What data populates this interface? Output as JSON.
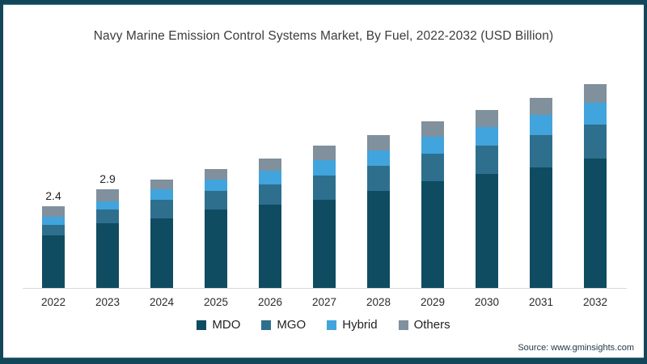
{
  "title": "Navy Marine Emission Control Systems Market, By Fuel, 2022-2032 (USD Billion)",
  "source": "Source: www.gminsights.com",
  "colors": {
    "frame_border": "#14465a",
    "axis_line": "#d9d9d9",
    "mdo": "#0f4c61",
    "mgo": "#2e6f8e",
    "hybrid": "#41a4dc",
    "others": "#80909c"
  },
  "chart_data": {
    "type": "bar",
    "stacked": true,
    "title": "Navy Marine Emission Control Systems Market, By Fuel, 2022-2032 (USD Billion)",
    "unit": "USD Billion",
    "categories": [
      "2022",
      "2023",
      "2024",
      "2025",
      "2026",
      "2027",
      "2028",
      "2029",
      "2030",
      "2031",
      "2032"
    ],
    "series": [
      {
        "name": "MDO",
        "color": "#0f4c61",
        "values": [
          1.55,
          1.9,
          2.05,
          2.3,
          2.45,
          2.6,
          2.85,
          3.15,
          3.35,
          3.55,
          3.8
        ]
      },
      {
        "name": "MGO",
        "color": "#2e6f8e",
        "values": [
          0.3,
          0.4,
          0.55,
          0.55,
          0.6,
          0.7,
          0.75,
          0.8,
          0.85,
          0.95,
          1.0
        ]
      },
      {
        "name": "Hybrid",
        "color": "#41a4dc",
        "values": [
          0.25,
          0.25,
          0.3,
          0.35,
          0.4,
          0.45,
          0.45,
          0.5,
          0.55,
          0.6,
          0.65
        ]
      },
      {
        "name": "Others",
        "color": "#80909c",
        "values": [
          0.3,
          0.35,
          0.3,
          0.3,
          0.35,
          0.45,
          0.45,
          0.45,
          0.5,
          0.5,
          0.55
        ]
      }
    ],
    "totals": [
      2.4,
      2.9,
      3.2,
      3.5,
      3.8,
      4.2,
      4.5,
      4.9,
      5.25,
      5.6,
      6.0
    ],
    "point_labels": [
      "2.4",
      "2.9",
      "",
      "",
      "",
      "",
      "",
      "",
      "",
      "",
      ""
    ],
    "xlabel": "",
    "ylabel": "",
    "ylim": [
      0,
      6.5
    ],
    "grid": false,
    "y_axis_visible": false,
    "legend_position": "bottom"
  }
}
